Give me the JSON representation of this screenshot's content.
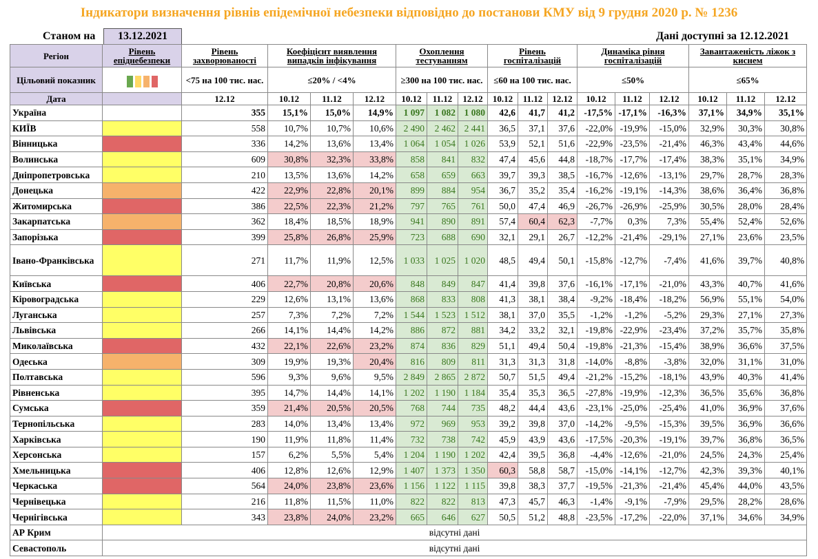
{
  "title": "Індикатори визначення рівнів епідемічної небезпеки відповідно до постанови КМУ від 9 грудня 2020 р. № 1236",
  "as_of_label": "Станом на",
  "as_of_date": "13.12.2021",
  "available_label": "Дані доступні за  12.12.2021",
  "headers": {
    "region": "Регіон",
    "level": "Рівень епіднебезпеки",
    "incidence": "Рівень захворюваності",
    "detection": "Коефіцієнт виявлення випадків інфікування",
    "testing": "Охоплення тестуванням",
    "hosp": "Рівень госпіталізацій",
    "hosp_dyn": "Динаміка рівня госпіталізацій",
    "oxygen": "Завантаженість ліжок з киснем"
  },
  "targets": {
    "label": "Цільовий показник",
    "incidence": "<75 на 100 тис. нас.",
    "detection": "≤20% / <4%",
    "testing": "≥300 на 100 тис. нас.",
    "hosp": "≤60 на 100 тис. нас.",
    "hosp_dyn": "≤50%",
    "oxygen": "≤65%"
  },
  "legend_colors": [
    "#6AA84F",
    "#FFD966",
    "#F6B26B",
    "#E06666"
  ],
  "dates": {
    "label": "Дата",
    "incidence": "12.12",
    "d1": "10.12",
    "d2": "11.12",
    "d3": "12.12"
  },
  "rows": [
    {
      "region": "Україна",
      "level": "",
      "inc": "355",
      "det": [
        "15,1%",
        "15,0%",
        "14,9%"
      ],
      "det_c": [
        "",
        "",
        ""
      ],
      "tst": [
        "1 097",
        "1 082",
        "1 080"
      ],
      "hosp": [
        "42,6",
        "41,7",
        "41,2"
      ],
      "hosp_c": [
        "",
        "",
        ""
      ],
      "dyn": [
        "-17,5%",
        "-17,1%",
        "-16,3%"
      ],
      "oxy": [
        "37,1%",
        "34,9%",
        "35,1%"
      ]
    },
    {
      "region": "КИЇВ",
      "level": "yel",
      "inc": "558",
      "det": [
        "10,7%",
        "10,7%",
        "10,6%"
      ],
      "det_c": [
        "",
        "",
        ""
      ],
      "tst": [
        "2 490",
        "2 462",
        "2 441"
      ],
      "hosp": [
        "36,5",
        "37,1",
        "37,6"
      ],
      "hosp_c": [
        "",
        "",
        ""
      ],
      "dyn": [
        "-22,0%",
        "-19,9%",
        "-15,0%"
      ],
      "oxy": [
        "32,9%",
        "30,3%",
        "30,8%"
      ]
    },
    {
      "region": "Вінницька",
      "level": "rd",
      "inc": "336",
      "det": [
        "14,2%",
        "13,6%",
        "13,4%"
      ],
      "det_c": [
        "",
        "",
        ""
      ],
      "tst": [
        "1 064",
        "1 054",
        "1 026"
      ],
      "hosp": [
        "53,9",
        "52,1",
        "51,6"
      ],
      "hosp_c": [
        "",
        "",
        ""
      ],
      "dyn": [
        "-22,9%",
        "-23,5%",
        "-21,4%"
      ],
      "oxy": [
        "46,3%",
        "43,4%",
        "44,6%"
      ]
    },
    {
      "region": "Волинська",
      "level": "yel",
      "inc": "609",
      "det": [
        "30,8%",
        "32,3%",
        "33,8%"
      ],
      "det_c": [
        "r",
        "r",
        "r"
      ],
      "tst": [
        "858",
        "841",
        "832"
      ],
      "hosp": [
        "47,4",
        "45,6",
        "44,8"
      ],
      "hosp_c": [
        "",
        "",
        ""
      ],
      "dyn": [
        "-18,7%",
        "-17,7%",
        "-17,4%"
      ],
      "oxy": [
        "38,3%",
        "35,1%",
        "34,9%"
      ]
    },
    {
      "region": "Дніпропетровська",
      "level": "yel",
      "inc": "210",
      "det": [
        "13,5%",
        "13,6%",
        "14,2%"
      ],
      "det_c": [
        "",
        "",
        ""
      ],
      "tst": [
        "658",
        "659",
        "663"
      ],
      "hosp": [
        "39,7",
        "39,3",
        "38,5"
      ],
      "hosp_c": [
        "",
        "",
        ""
      ],
      "dyn": [
        "-16,7%",
        "-12,6%",
        "-13,1%"
      ],
      "oxy": [
        "29,7%",
        "28,7%",
        "28,3%"
      ]
    },
    {
      "region": "Донецька",
      "level": "org",
      "inc": "422",
      "det": [
        "22,9%",
        "22,8%",
        "20,1%"
      ],
      "det_c": [
        "r",
        "r",
        "r"
      ],
      "tst": [
        "899",
        "884",
        "954"
      ],
      "hosp": [
        "36,7",
        "35,2",
        "35,4"
      ],
      "hosp_c": [
        "",
        "",
        ""
      ],
      "dyn": [
        "-16,2%",
        "-19,1%",
        "-14,3%"
      ],
      "oxy": [
        "38,6%",
        "36,4%",
        "36,8%"
      ]
    },
    {
      "region": "Житомирська",
      "level": "rd",
      "inc": "386",
      "det": [
        "22,5%",
        "22,3%",
        "21,2%"
      ],
      "det_c": [
        "r",
        "r",
        "r"
      ],
      "tst": [
        "797",
        "765",
        "761"
      ],
      "hosp": [
        "50,0",
        "47,4",
        "46,9"
      ],
      "hosp_c": [
        "",
        "",
        ""
      ],
      "dyn": [
        "-26,7%",
        "-26,9%",
        "-25,9%"
      ],
      "oxy": [
        "30,5%",
        "28,0%",
        "28,4%"
      ]
    },
    {
      "region": "Закарпатська",
      "level": "org",
      "inc": "362",
      "det": [
        "18,4%",
        "18,5%",
        "18,9%"
      ],
      "det_c": [
        "",
        "",
        ""
      ],
      "tst": [
        "941",
        "890",
        "891"
      ],
      "hosp": [
        "57,4",
        "60,4",
        "62,3"
      ],
      "hosp_c": [
        "",
        "r",
        "r"
      ],
      "dyn": [
        "-7,7%",
        "0,3%",
        "7,3%"
      ],
      "oxy": [
        "55,4%",
        "52,4%",
        "52,6%"
      ]
    },
    {
      "region": "Запорізька",
      "level": "rd",
      "inc": "399",
      "det": [
        "25,8%",
        "26,8%",
        "25,9%"
      ],
      "det_c": [
        "r",
        "r",
        "r"
      ],
      "tst": [
        "723",
        "688",
        "690"
      ],
      "hosp": [
        "32,1",
        "29,1",
        "26,7"
      ],
      "hosp_c": [
        "",
        "",
        ""
      ],
      "dyn": [
        "-12,2%",
        "-21,4%",
        "-29,1%"
      ],
      "oxy": [
        "27,1%",
        "23,6%",
        "23,5%"
      ]
    },
    {
      "region": "Івано-Франківська",
      "level": "yel",
      "inc": "271",
      "det": [
        "11,7%",
        "11,9%",
        "12,5%"
      ],
      "det_c": [
        "",
        "",
        ""
      ],
      "tst": [
        "1 033",
        "1 025",
        "1 020"
      ],
      "hosp": [
        "48,5",
        "49,4",
        "50,1"
      ],
      "hosp_c": [
        "",
        "",
        ""
      ],
      "dyn": [
        "-15,8%",
        "-12,7%",
        "-7,4%"
      ],
      "oxy": [
        "41,6%",
        "39,7%",
        "40,8%"
      ],
      "tall": true
    },
    {
      "region": "Київська",
      "level": "rd",
      "inc": "406",
      "det": [
        "22,7%",
        "20,8%",
        "20,6%"
      ],
      "det_c": [
        "r",
        "r",
        "r"
      ],
      "tst": [
        "848",
        "849",
        "847"
      ],
      "hosp": [
        "41,4",
        "39,8",
        "37,6"
      ],
      "hosp_c": [
        "",
        "",
        ""
      ],
      "dyn": [
        "-16,1%",
        "-17,1%",
        "-21,0%"
      ],
      "oxy": [
        "43,3%",
        "40,7%",
        "41,6%"
      ]
    },
    {
      "region": "Кіровоградська",
      "level": "yel",
      "inc": "229",
      "det": [
        "12,6%",
        "13,1%",
        "13,6%"
      ],
      "det_c": [
        "",
        "",
        ""
      ],
      "tst": [
        "868",
        "833",
        "808"
      ],
      "hosp": [
        "41,3",
        "38,1",
        "38,4"
      ],
      "hosp_c": [
        "",
        "",
        ""
      ],
      "dyn": [
        "-9,2%",
        "-18,4%",
        "-18,2%"
      ],
      "oxy": [
        "56,9%",
        "55,1%",
        "54,0%"
      ]
    },
    {
      "region": "Луганська",
      "level": "yel",
      "inc": "257",
      "det": [
        "7,3%",
        "7,2%",
        "7,2%"
      ],
      "det_c": [
        "",
        "",
        ""
      ],
      "tst": [
        "1 544",
        "1 523",
        "1 512"
      ],
      "hosp": [
        "38,1",
        "37,0",
        "35,5"
      ],
      "hosp_c": [
        "",
        "",
        ""
      ],
      "dyn": [
        "-1,2%",
        "-1,2%",
        "-5,2%"
      ],
      "oxy": [
        "29,3%",
        "27,1%",
        "27,3%"
      ]
    },
    {
      "region": "Львівська",
      "level": "yel",
      "inc": "266",
      "det": [
        "14,1%",
        "14,4%",
        "14,2%"
      ],
      "det_c": [
        "",
        "",
        ""
      ],
      "tst": [
        "886",
        "872",
        "881"
      ],
      "hosp": [
        "34,2",
        "33,2",
        "32,1"
      ],
      "hosp_c": [
        "",
        "",
        ""
      ],
      "dyn": [
        "-19,8%",
        "-22,9%",
        "-23,4%"
      ],
      "oxy": [
        "37,2%",
        "35,7%",
        "35,8%"
      ]
    },
    {
      "region": "Миколаївська",
      "level": "rd",
      "inc": "432",
      "det": [
        "22,1%",
        "22,6%",
        "23,2%"
      ],
      "det_c": [
        "r",
        "r",
        "r"
      ],
      "tst": [
        "874",
        "836",
        "829"
      ],
      "hosp": [
        "51,1",
        "49,4",
        "50,4"
      ],
      "hosp_c": [
        "",
        "",
        ""
      ],
      "dyn": [
        "-19,8%",
        "-21,3%",
        "-15,4%"
      ],
      "oxy": [
        "38,9%",
        "36,6%",
        "37,5%"
      ]
    },
    {
      "region": "Одеська",
      "level": "org",
      "inc": "309",
      "det": [
        "19,9%",
        "19,3%",
        "20,4%"
      ],
      "det_c": [
        "",
        "",
        "r"
      ],
      "tst": [
        "816",
        "809",
        "811"
      ],
      "hosp": [
        "31,3",
        "31,3",
        "31,8"
      ],
      "hosp_c": [
        "",
        "",
        ""
      ],
      "dyn": [
        "-14,0%",
        "-8,8%",
        "-3,8%"
      ],
      "oxy": [
        "32,0%",
        "31,1%",
        "31,0%"
      ]
    },
    {
      "region": "Полтавська",
      "level": "yel",
      "inc": "596",
      "det": [
        "9,3%",
        "9,6%",
        "9,5%"
      ],
      "det_c": [
        "",
        "",
        ""
      ],
      "tst": [
        "2 849",
        "2 865",
        "2 872"
      ],
      "hosp": [
        "50,7",
        "51,5",
        "49,4"
      ],
      "hosp_c": [
        "",
        "",
        ""
      ],
      "dyn": [
        "-21,2%",
        "-15,2%",
        "-18,1%"
      ],
      "oxy": [
        "43,9%",
        "40,3%",
        "41,4%"
      ]
    },
    {
      "region": "Рівненська",
      "level": "yel",
      "inc": "395",
      "det": [
        "14,7%",
        "14,4%",
        "14,1%"
      ],
      "det_c": [
        "",
        "",
        ""
      ],
      "tst": [
        "1 202",
        "1 190",
        "1 184"
      ],
      "hosp": [
        "35,4",
        "35,3",
        "36,5"
      ],
      "hosp_c": [
        "",
        "",
        ""
      ],
      "dyn": [
        "-27,8%",
        "-19,9%",
        "-12,3%"
      ],
      "oxy": [
        "36,5%",
        "35,6%",
        "36,8%"
      ]
    },
    {
      "region": "Сумська",
      "level": "rd",
      "inc": "359",
      "det": [
        "21,4%",
        "20,5%",
        "20,5%"
      ],
      "det_c": [
        "r",
        "r",
        "r"
      ],
      "tst": [
        "768",
        "744",
        "735"
      ],
      "hosp": [
        "48,2",
        "44,4",
        "43,6"
      ],
      "hosp_c": [
        "",
        "",
        ""
      ],
      "dyn": [
        "-23,1%",
        "-25,0%",
        "-25,4%"
      ],
      "oxy": [
        "41,0%",
        "36,9%",
        "37,6%"
      ]
    },
    {
      "region": "Тернопільська",
      "level": "yel",
      "inc": "283",
      "det": [
        "14,0%",
        "13,4%",
        "13,4%"
      ],
      "det_c": [
        "",
        "",
        ""
      ],
      "tst": [
        "972",
        "969",
        "953"
      ],
      "hosp": [
        "39,2",
        "39,8",
        "37,0"
      ],
      "hosp_c": [
        "",
        "",
        ""
      ],
      "dyn": [
        "-14,2%",
        "-9,5%",
        "-15,3%"
      ],
      "oxy": [
        "39,5%",
        "36,9%",
        "36,6%"
      ]
    },
    {
      "region": "Харківська",
      "level": "yel",
      "inc": "190",
      "det": [
        "11,9%",
        "11,8%",
        "11,4%"
      ],
      "det_c": [
        "",
        "",
        ""
      ],
      "tst": [
        "732",
        "738",
        "742"
      ],
      "hosp": [
        "45,9",
        "43,9",
        "43,6"
      ],
      "hosp_c": [
        "",
        "",
        ""
      ],
      "dyn": [
        "-17,5%",
        "-20,3%",
        "-19,1%"
      ],
      "oxy": [
        "39,7%",
        "36,8%",
        "36,5%"
      ]
    },
    {
      "region": "Херсонська",
      "level": "yel",
      "inc": "157",
      "det": [
        "6,2%",
        "5,5%",
        "5,4%"
      ],
      "det_c": [
        "",
        "",
        ""
      ],
      "tst": [
        "1 204",
        "1 190",
        "1 202"
      ],
      "hosp": [
        "42,4",
        "39,5",
        "36,8"
      ],
      "hosp_c": [
        "",
        "",
        ""
      ],
      "dyn": [
        "-4,4%",
        "-12,6%",
        "-21,0%"
      ],
      "oxy": [
        "24,5%",
        "24,3%",
        "25,4%"
      ]
    },
    {
      "region": "Хмельницька",
      "level": "rd",
      "inc": "406",
      "det": [
        "12,8%",
        "12,6%",
        "12,9%"
      ],
      "det_c": [
        "",
        "",
        ""
      ],
      "tst": [
        "1 407",
        "1 373",
        "1 350"
      ],
      "hosp": [
        "60,3",
        "58,8",
        "58,7"
      ],
      "hosp_c": [
        "r",
        "",
        ""
      ],
      "dyn": [
        "-15,0%",
        "-14,1%",
        "-12,7%"
      ],
      "oxy": [
        "42,3%",
        "39,3%",
        "40,1%"
      ]
    },
    {
      "region": "Черкаська",
      "level": "rd",
      "inc": "564",
      "det": [
        "24,0%",
        "23,8%",
        "23,6%"
      ],
      "det_c": [
        "r",
        "r",
        "r"
      ],
      "tst": [
        "1 156",
        "1 122",
        "1 115"
      ],
      "hosp": [
        "39,8",
        "38,3",
        "37,7"
      ],
      "hosp_c": [
        "",
        "",
        ""
      ],
      "dyn": [
        "-19,5%",
        "-21,3%",
        "-21,4%"
      ],
      "oxy": [
        "45,4%",
        "44,0%",
        "43,5%"
      ]
    },
    {
      "region": "Чернівецька",
      "level": "yel",
      "inc": "216",
      "det": [
        "11,8%",
        "11,5%",
        "11,0%"
      ],
      "det_c": [
        "",
        "",
        ""
      ],
      "tst": [
        "822",
        "822",
        "813"
      ],
      "hosp": [
        "47,3",
        "45,7",
        "46,3"
      ],
      "hosp_c": [
        "",
        "",
        ""
      ],
      "dyn": [
        "-1,4%",
        "-9,1%",
        "-7,9%"
      ],
      "oxy": [
        "29,5%",
        "28,2%",
        "28,6%"
      ]
    },
    {
      "region": "Чернігівська",
      "level": "yel",
      "inc": "343",
      "det": [
        "23,8%",
        "24,0%",
        "23,2%"
      ],
      "det_c": [
        "r",
        "r",
        "r"
      ],
      "tst": [
        "665",
        "646",
        "627"
      ],
      "hosp": [
        "50,5",
        "51,2",
        "48,8"
      ],
      "hosp_c": [
        "",
        "",
        ""
      ],
      "dyn": [
        "-23,5%",
        "-17,2%",
        "-22,0%"
      ],
      "oxy": [
        "37,1%",
        "34,6%",
        "34,9%"
      ]
    }
  ],
  "missing_rows": [
    {
      "region": "АР Крим",
      "text": "відсутні дані"
    },
    {
      "region": "Севастополь",
      "text": "відсутні дані"
    }
  ]
}
